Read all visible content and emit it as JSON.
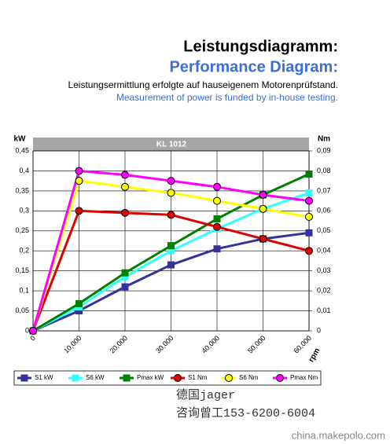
{
  "chart_data": {
    "type": "line",
    "title": "Leistungsdiagramm:",
    "title_en": "Performance Diagram:",
    "subtitle": "Leistungsermittlung erfolgte auf hauseigenem Motorenprüfstand.",
    "subtitle_en": "Measurement of power is funded by in-house testing.",
    "chart_label": "KL 1012",
    "ylabel": "kW",
    "y2label": "Nm",
    "xlabel": "rpm",
    "x": [
      0,
      10000,
      20000,
      30000,
      40000,
      50000,
      60000
    ],
    "xlim": [
      0,
      60000
    ],
    "xticks": [
      0,
      {
        "value": 10000,
        "label": "10,000"
      },
      {
        "value": 20000,
        "label": "20,000"
      },
      {
        "value": 30000,
        "label": "30,000"
      },
      {
        "value": 40000,
        "label": "40,000"
      },
      {
        "value": 50000,
        "label": "50,000"
      },
      {
        "value": 60000,
        "label": "60,000"
      }
    ],
    "ylim": [
      0,
      0.45
    ],
    "yticks": [
      0,
      {
        "value": 0.05,
        "label": "0,05"
      },
      {
        "value": 0.1,
        "label": "0,1"
      },
      {
        "value": 0.15,
        "label": "0,15"
      },
      {
        "value": 0.2,
        "label": "0,2"
      },
      {
        "value": 0.25,
        "label": "0,25"
      },
      {
        "value": 0.3,
        "label": "0,3"
      },
      {
        "value": 0.35,
        "label": "0,35"
      },
      {
        "value": 0.4,
        "label": "0,4"
      },
      {
        "value": 0.45,
        "label": "0,45"
      }
    ],
    "y2lim": [
      0,
      0.09
    ],
    "y2ticks": [
      0,
      {
        "value": 0.01,
        "label": "0,01"
      },
      {
        "value": 0.02,
        "label": "0,02"
      },
      {
        "value": 0.03,
        "label": "0,03"
      },
      {
        "value": 0.04,
        "label": "0,04"
      },
      {
        "value": 0.05,
        "label": "0,05"
      },
      {
        "value": 0.06,
        "label": "0,06"
      },
      {
        "value": 0.07,
        "label": "0,07"
      },
      {
        "value": 0.08,
        "label": "0,08"
      },
      {
        "value": 0.09,
        "label": "0,09"
      }
    ],
    "grid": true,
    "series": [
      {
        "name": "S1 kW",
        "color": "#333399",
        "marker": "square",
        "values": [
          0,
          0.05,
          0.11,
          0.165,
          0.205,
          0.23,
          0.245
        ]
      },
      {
        "name": "S6 kW",
        "color": "#33ffff",
        "marker": "square",
        "values": [
          0,
          0.06,
          0.135,
          0.2,
          0.255,
          0.305,
          0.345
        ]
      },
      {
        "name": "Pmax kW",
        "color": "#008000",
        "marker": "square",
        "values": [
          0,
          0.068,
          0.145,
          0.213,
          0.28,
          0.34,
          0.392
        ]
      },
      {
        "name": "S1 Nm",
        "color": "#e00000",
        "marker": "circle",
        "axis": "y2",
        "values": [
          0,
          0.06,
          0.059,
          0.058,
          0.052,
          0.046,
          0.04
        ]
      },
      {
        "name": "S6 Nm",
        "color": "#ffff00",
        "marker": "circle",
        "axis": "y2",
        "values": [
          0,
          0.075,
          0.072,
          0.069,
          0.065,
          0.061,
          0.057
        ]
      },
      {
        "name": "Pmax Nm",
        "color": "#ff00ff",
        "marker": "circle",
        "axis": "y2",
        "values": [
          0,
          0.08,
          0.078,
          0.075,
          0.072,
          0.068,
          0.065
        ]
      }
    ]
  },
  "contact": {
    "line1": "德国jager",
    "line2": "咨询曾工153-6200-6004"
  },
  "watermark": "china.makepolo.com"
}
